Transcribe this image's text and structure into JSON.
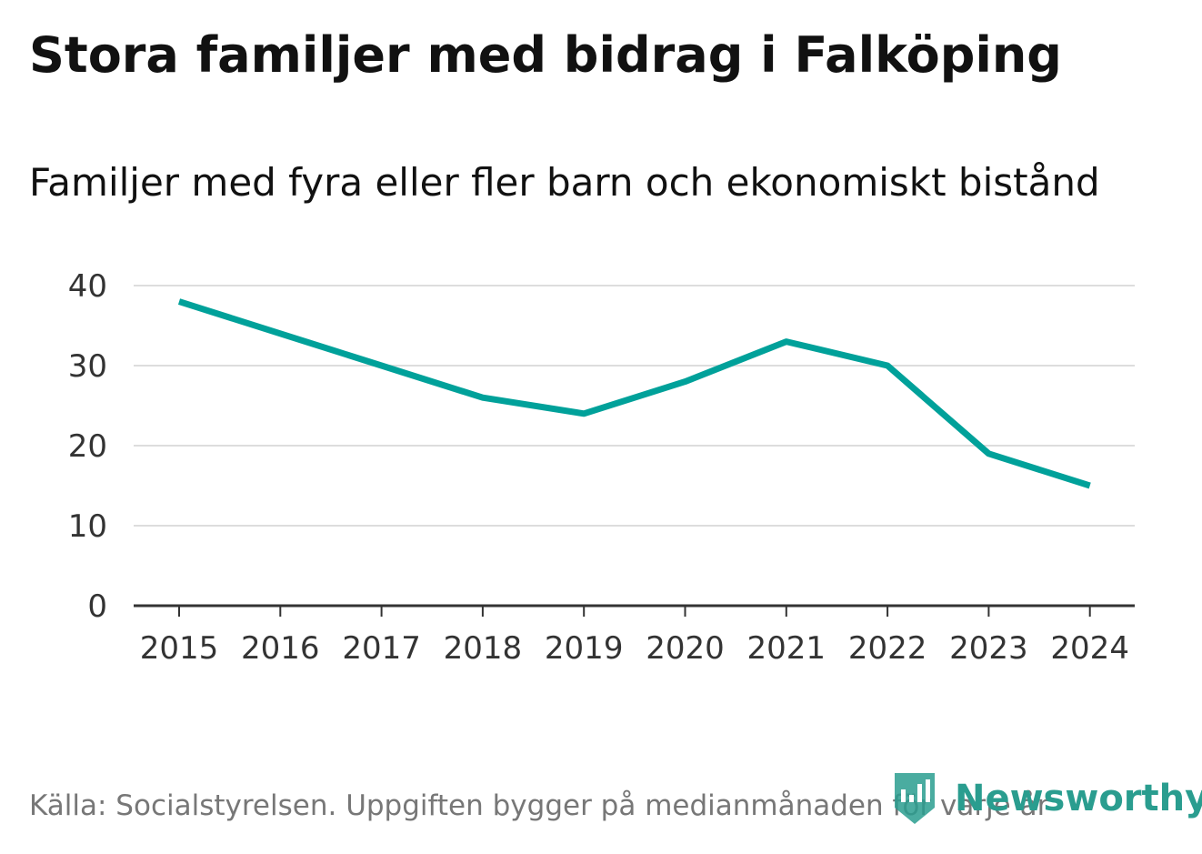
{
  "title": "Stora familjer med bidrag i Falköping",
  "subtitle": "Familjer med fyra eller fler barn och ekonomiskt bistånd",
  "source": "Källa: Socialstyrelsen. Uppgiften bygger på medianmånaden för varje år",
  "logo": {
    "text": "Newsworthy",
    "icon": "newsworthy-logo-icon",
    "color": "#2a9d8f"
  },
  "chart_data": {
    "type": "line",
    "title": "Stora familjer med bidrag i Falköping",
    "subtitle": "Familjer med fyra eller fler barn och ekonomiskt bistånd",
    "xlabel": "",
    "ylabel": "",
    "x": [
      "2015",
      "2016",
      "2017",
      "2018",
      "2019",
      "2020",
      "2021",
      "2022",
      "2023",
      "2024"
    ],
    "series": [
      {
        "values": [
          38,
          34,
          30,
          26,
          24,
          28,
          33,
          30,
          19,
          15
        ],
        "color": "#00a19a"
      }
    ],
    "ylim": [
      0,
      40
    ],
    "yticks": [
      "0",
      "10",
      "20",
      "30",
      "40"
    ],
    "grid": true,
    "legend": "none"
  }
}
